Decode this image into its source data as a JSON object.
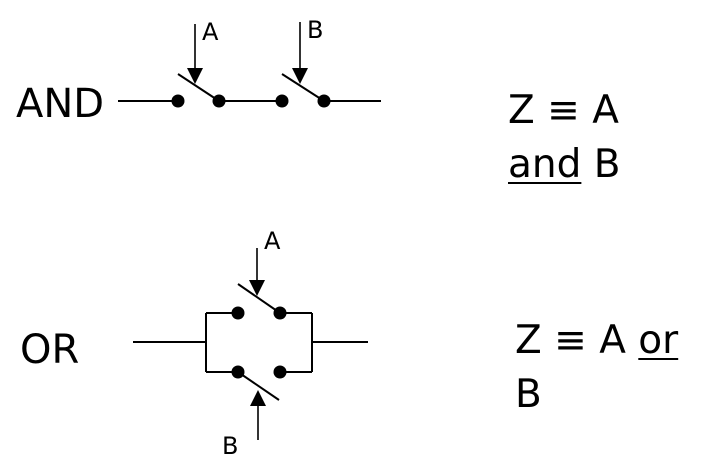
{
  "and_section": {
    "gate_label": "AND",
    "switch_a_label": "A",
    "switch_b_label": "B",
    "equation": {
      "lhs": "Z ≡ ",
      "var1": "A",
      "connector": "and",
      "var2": "B"
    }
  },
  "or_section": {
    "gate_label": "OR",
    "switch_a_label": "A",
    "switch_b_label": "B",
    "equation": {
      "lhs": "Z ≡ ",
      "var1": "A",
      "connector": "or",
      "var2": "B"
    }
  }
}
